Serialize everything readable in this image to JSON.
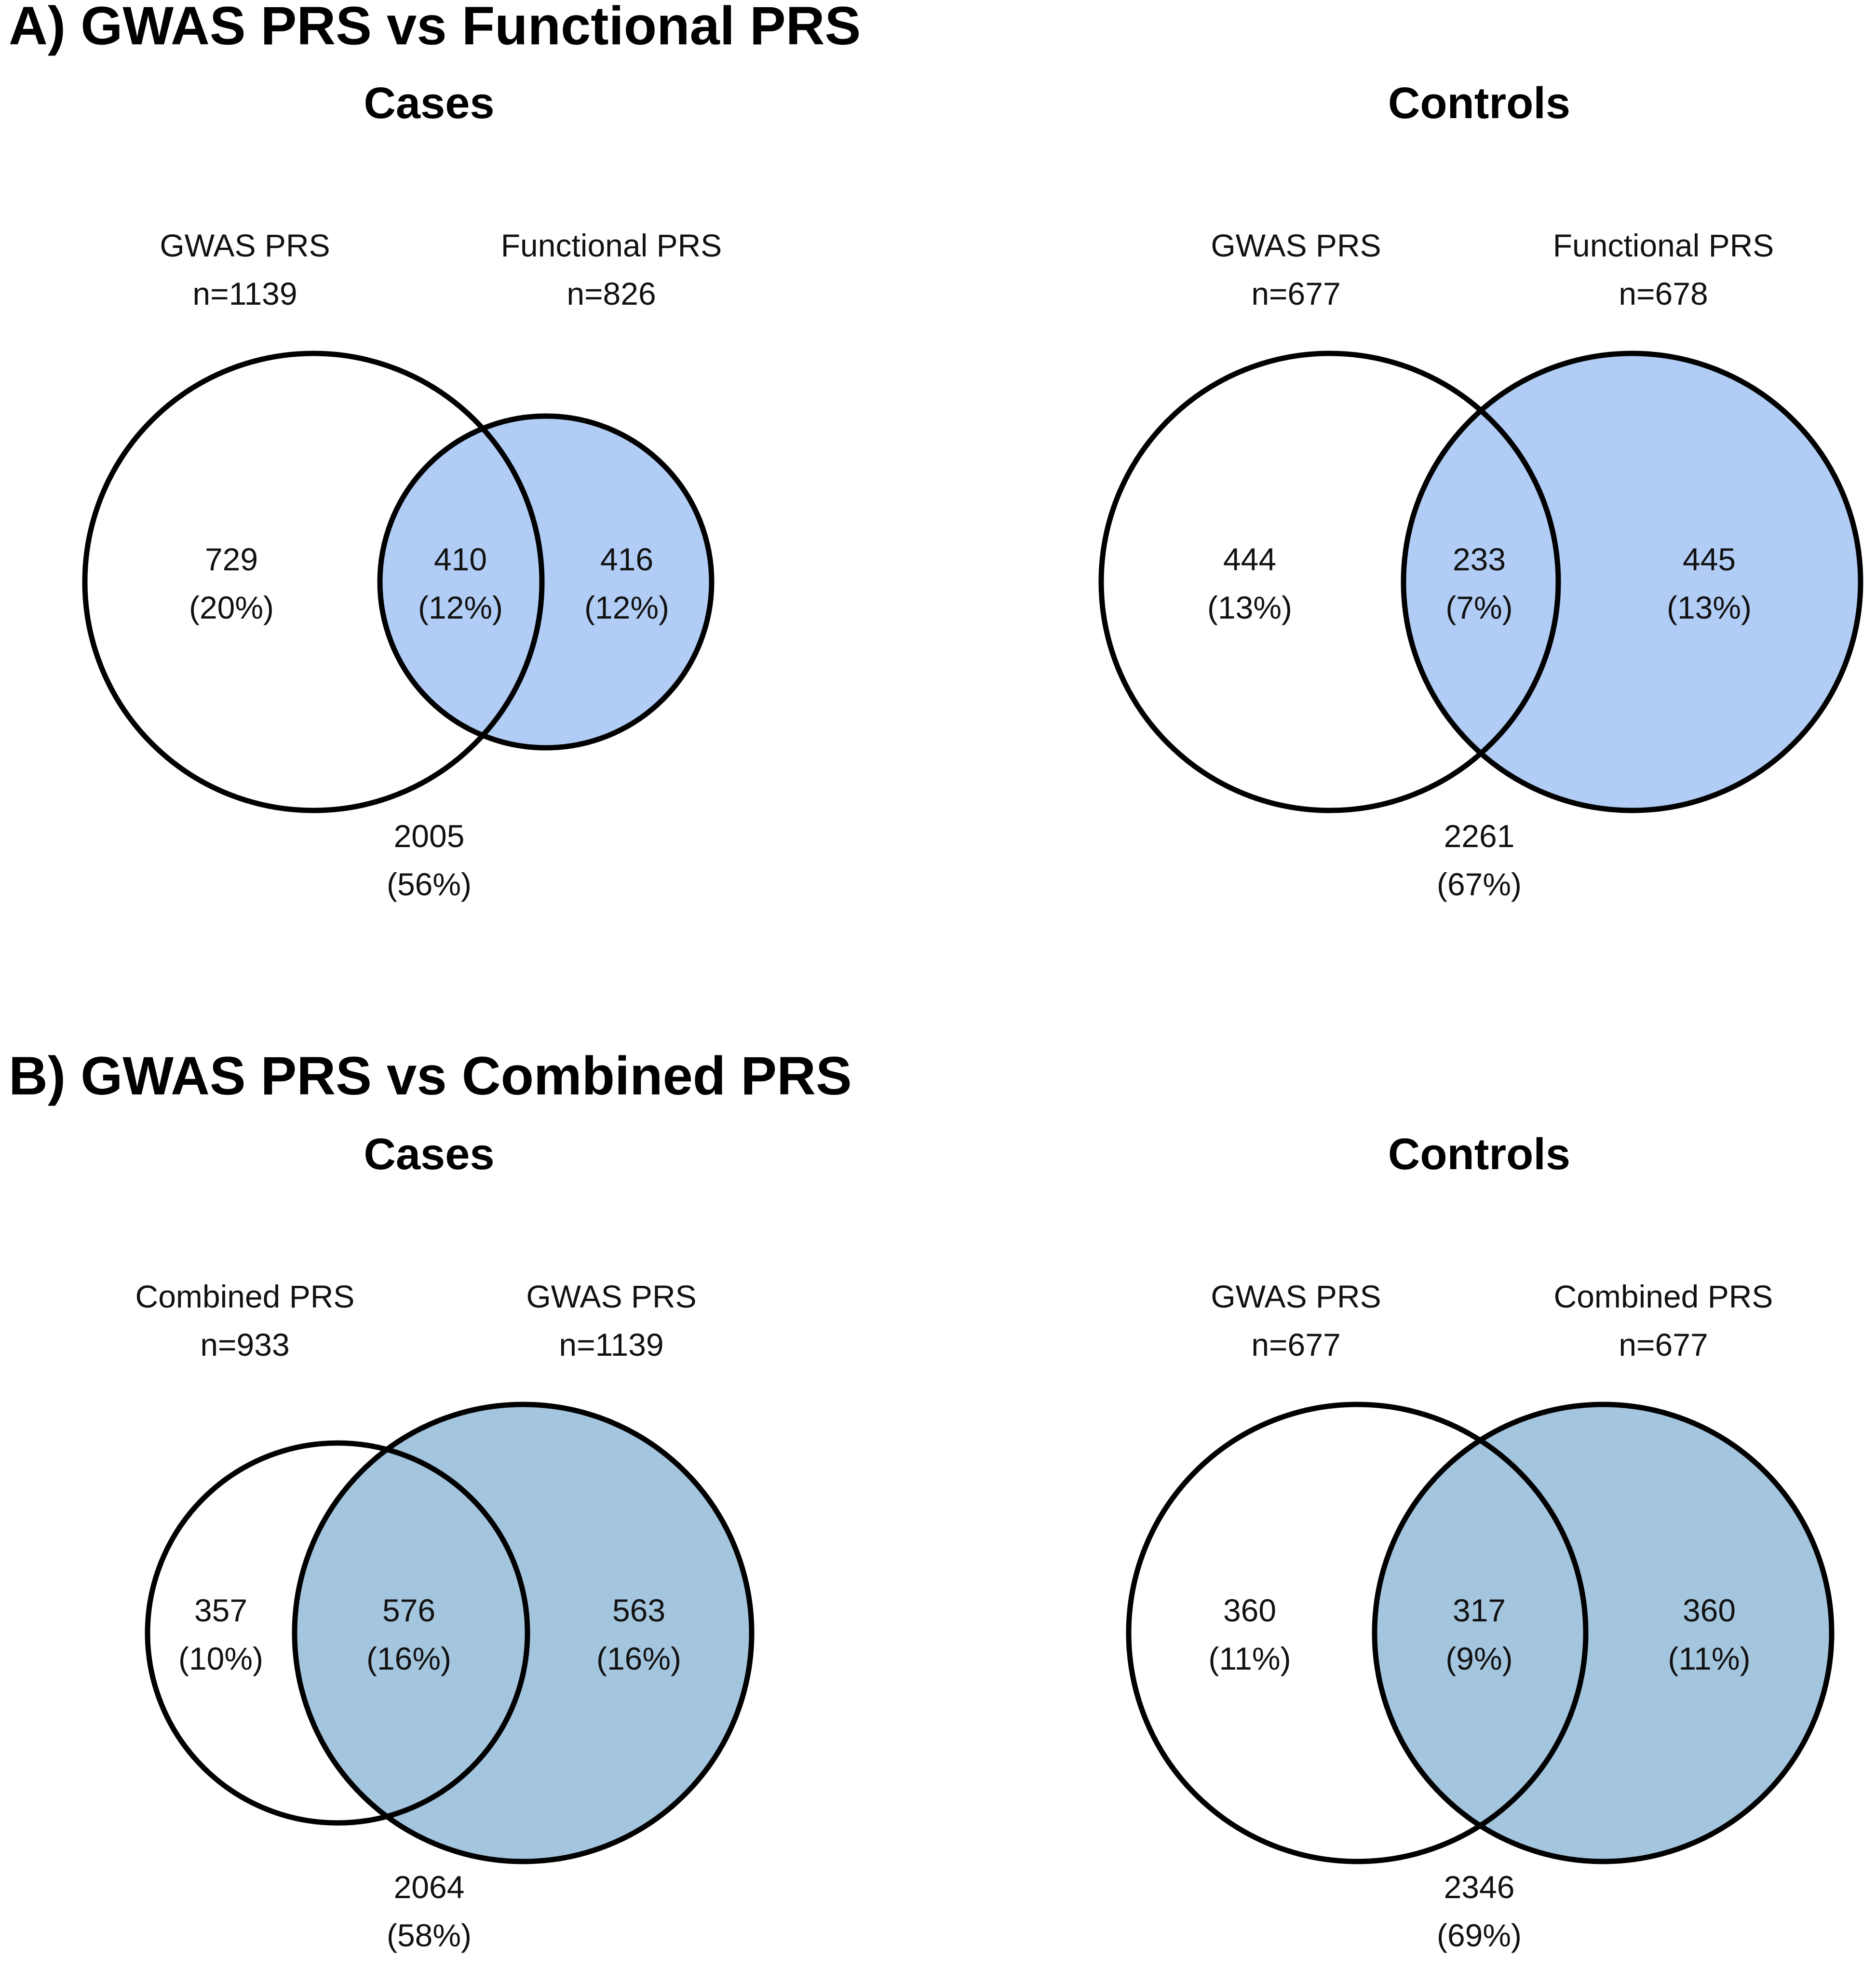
{
  "colors": {
    "functional_fill": "#b1cdf5",
    "combined_fill": "#a4c5de",
    "outline": "#000000",
    "background": "#ffffff"
  },
  "panels": [
    {
      "heading": "A) GWAS PRS vs Functional PRS",
      "diagrams": [
        {
          "title": "Cases",
          "set_left": {
            "label": "GWAS PRS",
            "n": "n=1139"
          },
          "set_right": {
            "label": "Functional PRS",
            "n": "n=826"
          },
          "regions": {
            "left_only": {
              "count": "729",
              "pct": "(20%)"
            },
            "overlap": {
              "count": "410",
              "pct": "(12%)"
            },
            "right_only": {
              "count": "416",
              "pct": "(12%)"
            },
            "outside": {
              "count": "2005",
              "pct": "(56%)"
            }
          }
        },
        {
          "title": "Controls",
          "set_left": {
            "label": "GWAS PRS",
            "n": "n=677"
          },
          "set_right": {
            "label": "Functional PRS",
            "n": "n=678"
          },
          "regions": {
            "left_only": {
              "count": "444",
              "pct": "(13%)"
            },
            "overlap": {
              "count": "233",
              "pct": "(7%)"
            },
            "right_only": {
              "count": "445",
              "pct": "(13%)"
            },
            "outside": {
              "count": "2261",
              "pct": "(67%)"
            }
          }
        }
      ]
    },
    {
      "heading": "B) GWAS PRS vs Combined PRS",
      "diagrams": [
        {
          "title": "Cases",
          "set_left": {
            "label": "Combined PRS",
            "n": "n=933"
          },
          "set_right": {
            "label": "GWAS PRS",
            "n": "n=1139"
          },
          "regions": {
            "left_only": {
              "count": "357",
              "pct": "(10%)"
            },
            "overlap": {
              "count": "576",
              "pct": "(16%)"
            },
            "right_only": {
              "count": "563",
              "pct": "(16%)"
            },
            "outside": {
              "count": "2064",
              "pct": "(58%)"
            }
          }
        },
        {
          "title": "Controls",
          "set_left": {
            "label": "GWAS PRS",
            "n": "n=677"
          },
          "set_right": {
            "label": "Combined PRS",
            "n": "n=677"
          },
          "regions": {
            "left_only": {
              "count": "360",
              "pct": "(11%)"
            },
            "overlap": {
              "count": "317",
              "pct": "(9%)"
            },
            "right_only": {
              "count": "360",
              "pct": "(11%)"
            },
            "outside": {
              "count": "2346",
              "pct": "(69%)"
            }
          }
        }
      ]
    }
  ]
}
